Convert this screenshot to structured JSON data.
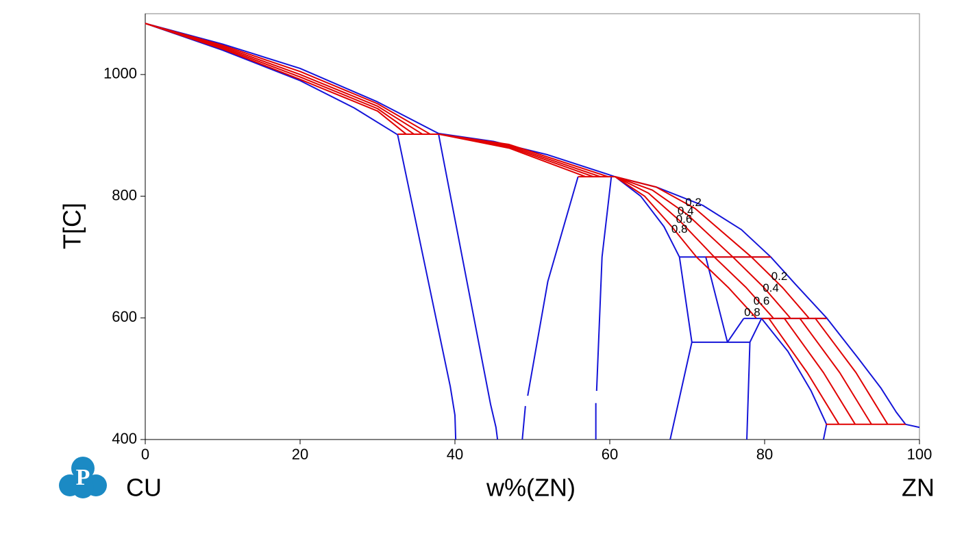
{
  "chart_data": {
    "type": "line",
    "xlabel": "w%(ZN)",
    "ylabel": "T[C]",
    "left_component": "CU",
    "right_component": "ZN",
    "xlim": [
      0,
      100
    ],
    "ylim": [
      400,
      1100
    ],
    "xticks": [
      0,
      20,
      40,
      60,
      80,
      100
    ],
    "yticks": [
      400,
      600,
      800,
      1000
    ],
    "grid": false,
    "series": [
      {
        "color": "#1414d8",
        "x": [
          0,
          10,
          20,
          30,
          37.9
        ],
        "y": [
          1084,
          1050,
          1010,
          955,
          903
        ]
      },
      {
        "color": "#1414d8",
        "x": [
          37.9,
          45,
          52,
          60.7
        ],
        "y": [
          903,
          890,
          868,
          832
        ]
      },
      {
        "color": "#1414d8",
        "x": [
          60.7,
          66,
          72,
          77,
          80.8,
          84,
          88,
          92,
          95,
          97,
          98.2,
          100
        ],
        "y": [
          832,
          815,
          785,
          745,
          700,
          655,
          600,
          535,
          485,
          445,
          425,
          420
        ]
      },
      {
        "color": "#1414d8",
        "x": [
          0,
          10,
          20,
          27,
          32.6
        ],
        "y": [
          1084,
          1040,
          990,
          945,
          901
        ]
      },
      {
        "color": "#1414d8",
        "x": [
          32.6,
          39.4,
          40,
          40.1
        ],
        "y": [
          901,
          487,
          440,
          400
        ]
      },
      {
        "color": "#1414d8",
        "x": [
          37.9,
          44.6,
          45.3,
          45.5
        ],
        "y": [
          901,
          458,
          420,
          400
        ]
      },
      {
        "color": "#1414d8",
        "x": [
          55.9,
          52,
          49.4,
          null,
          49.1,
          48.7
        ],
        "y": [
          832,
          660,
          472,
          null,
          455,
          400
        ]
      },
      {
        "color": "#1414d8",
        "x": [
          60.2,
          59,
          58.3,
          null,
          58.2,
          58.2
        ],
        "y": [
          832,
          700,
          480,
          null,
          460,
          400
        ]
      },
      {
        "color": "#1414d8",
        "x": [
          60.7,
          64,
          67,
          69,
          70.6,
          67.8
        ],
        "y": [
          832,
          800,
          750,
          700,
          560,
          400
        ]
      },
      {
        "color": "#1414d8",
        "x": [
          69,
          80.8
        ],
        "y": [
          700,
          700
        ]
      },
      {
        "color": "#1414d8",
        "x": [
          72.4,
          75.2,
          77.3
        ],
        "y": [
          700,
          560,
          599
        ]
      },
      {
        "color": "#1414d8",
        "x": [
          70.6,
          78.1
        ],
        "y": [
          560,
          560
        ]
      },
      {
        "color": "#1414d8",
        "x": [
          79.6,
          78.1,
          77.7
        ],
        "y": [
          599,
          560,
          400
        ]
      },
      {
        "color": "#1414d8",
        "x": [
          79.6,
          83,
          86,
          88,
          87.6
        ],
        "y": [
          599,
          545,
          480,
          425,
          400
        ]
      },
      {
        "color": "#1414d8",
        "x": [
          77.3,
          88
        ],
        "y": [
          599,
          599
        ]
      },
      {
        "color": "#e00000",
        "x": [
          32.6,
          37.9
        ],
        "y": [
          902,
          902
        ]
      },
      {
        "color": "#e00000",
        "x": [
          55.9,
          60.7
        ],
        "y": [
          832,
          832
        ]
      },
      {
        "color": "#e00000",
        "x": [
          79.6,
          88
        ],
        "y": [
          599,
          599
        ]
      },
      {
        "color": "#e00000",
        "x": [
          87.9,
          98.2
        ],
        "y": [
          425,
          425
        ]
      },
      {
        "color": "#e00000",
        "x": [
          0,
          10,
          20,
          30,
          33.7
        ],
        "y": [
          1084,
          1042,
          992,
          940,
          902
        ]
      },
      {
        "color": "#e00000",
        "x": [
          0,
          10,
          20,
          30,
          34.7
        ],
        "y": [
          1084,
          1044,
          996,
          944,
          902
        ]
      },
      {
        "color": "#e00000",
        "x": [
          0,
          10,
          20,
          30,
          35.8
        ],
        "y": [
          1084,
          1046,
          1000,
          948,
          902
        ]
      },
      {
        "color": "#e00000",
        "x": [
          0,
          10,
          20,
          30,
          36.8
        ],
        "y": [
          1084,
          1048,
          1005,
          952,
          902
        ]
      },
      {
        "color": "#e00000",
        "x": [
          37.9,
          47,
          56.9
        ],
        "y": [
          902,
          879,
          832
        ]
      },
      {
        "color": "#e00000",
        "x": [
          37.9,
          47,
          57.9
        ],
        "y": [
          902,
          881,
          832
        ]
      },
      {
        "color": "#e00000",
        "x": [
          37.9,
          47,
          58.8
        ],
        "y": [
          902,
          883,
          832
        ]
      },
      {
        "color": "#e00000",
        "x": [
          37.9,
          47,
          59.8
        ],
        "y": [
          902,
          885,
          832
        ]
      },
      {
        "color": "#e00000",
        "x": [
          60.7,
          66,
          71,
          78.3
        ],
        "y": [
          832,
          815,
          780,
          700
        ]
      },
      {
        "color": "#e00000",
        "x": [
          60.7,
          65.5,
          70,
          75.9
        ],
        "y": [
          832,
          810,
          770,
          700
        ]
      },
      {
        "color": "#e00000",
        "x": [
          60.7,
          65,
          69,
          73.5
        ],
        "y": [
          832,
          805,
          760,
          700
        ]
      },
      {
        "color": "#e00000",
        "x": [
          60.7,
          64.5,
          68,
          71.2
        ],
        "y": [
          832,
          800,
          750,
          700
        ]
      },
      {
        "color": "#e00000",
        "x": [
          72.4,
          80.8
        ],
        "y": [
          700,
          700
        ]
      },
      {
        "color": "#e00000",
        "x": [
          78.3,
          82.3,
          85.7
        ],
        "y": [
          700,
          650,
          600
        ]
      },
      {
        "color": "#e00000",
        "x": [
          75.9,
          79.9,
          83.3
        ],
        "y": [
          700,
          650,
          600
        ]
      },
      {
        "color": "#e00000",
        "x": [
          73.5,
          77.6,
          81.1
        ],
        "y": [
          700,
          650,
          600
        ]
      },
      {
        "color": "#e00000",
        "x": [
          71.2,
          75.3,
          78.9
        ],
        "y": [
          700,
          650,
          600
        ]
      },
      {
        "color": "#e00000",
        "x": [
          80.5,
          85.5,
          89.6
        ],
        "y": [
          600,
          510,
          425
        ]
      },
      {
        "color": "#e00000",
        "x": [
          82.5,
          87.6,
          91.7
        ],
        "y": [
          600,
          510,
          425
        ]
      },
      {
        "color": "#e00000",
        "x": [
          84.5,
          89.7,
          93.8
        ],
        "y": [
          600,
          510,
          425
        ]
      },
      {
        "color": "#e00000",
        "x": [
          86.5,
          91.8,
          95.9
        ],
        "y": [
          600,
          510,
          425
        ]
      }
    ],
    "annotations": [
      {
        "text": "0.2",
        "x": 70.8,
        "y": 789
      },
      {
        "text": "0.4",
        "x": 69.8,
        "y": 775
      },
      {
        "text": "0.6",
        "x": 69.6,
        "y": 761
      },
      {
        "text": "0.8",
        "x": 69.0,
        "y": 745
      },
      {
        "text": "0.2",
        "x": 81.9,
        "y": 667
      },
      {
        "text": "0.4",
        "x": 80.8,
        "y": 648
      },
      {
        "text": "0.6",
        "x": 79.6,
        "y": 627
      },
      {
        "text": "0.8",
        "x": 78.4,
        "y": 608
      }
    ]
  }
}
